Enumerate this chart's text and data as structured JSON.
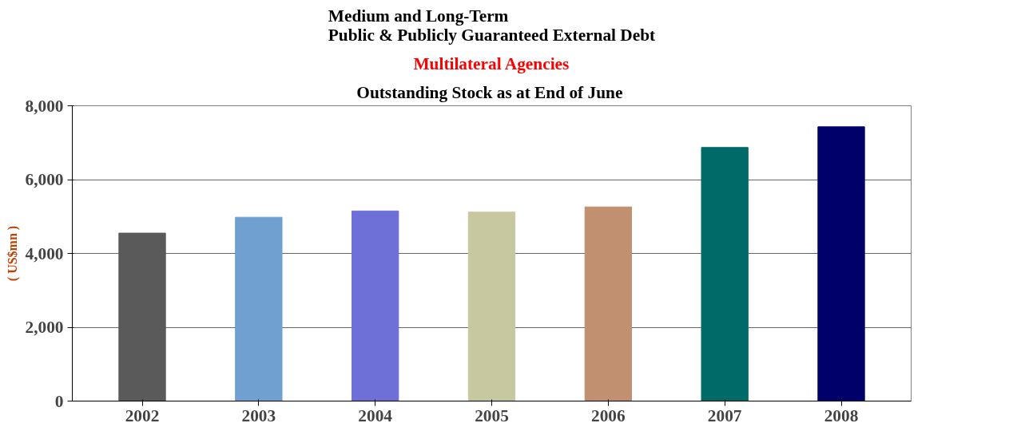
{
  "chart_data": {
    "type": "bar",
    "title": "Medium and Long-Term\nPublic & Publicly Guaranteed External Debt",
    "subtitle": "Multilateral Agencies",
    "annotations": [
      "Outstanding Stock as at End of  June"
    ],
    "ylabel": "( US$mn )",
    "categories": [
      "2002",
      "2003",
      "2004",
      "2005",
      "2006",
      "2007",
      "2008"
    ],
    "values": [
      4550,
      4980,
      5150,
      5120,
      5260,
      6870,
      7430
    ],
    "colors": [
      "#5a5a5a",
      "#6fa0d0",
      "#6f6fd8",
      "#c8c8a0",
      "#c09070",
      "#006a68",
      "#00006a"
    ],
    "ylim": [
      0,
      8000
    ],
    "yticks": [
      0,
      {
        "value": 2000,
        "label": "2,000"
      },
      {
        "value": 4000,
        "label": "4,000"
      },
      {
        "value": 6000,
        "label": "6,000"
      },
      {
        "value": 8000,
        "label": "8,000"
      }
    ],
    "grid": "y"
  }
}
